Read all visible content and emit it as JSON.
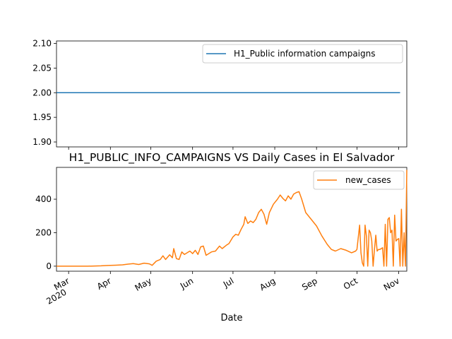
{
  "chart_data": [
    {
      "type": "line",
      "title": "",
      "xlabel": "",
      "ylabel": "",
      "ylim": [
        1.89,
        2.105
      ],
      "yticks": [
        "1.90",
        "1.95",
        "2.00",
        "2.05",
        "2.10"
      ],
      "legend": "top-right",
      "series": [
        {
          "name": "H1_Public information campaigns",
          "color": "#1f77b4",
          "x": [
            "2020-02-21",
            "2020-11-02"
          ],
          "y": [
            2.0,
            2.0
          ]
        }
      ]
    },
    {
      "type": "line",
      "title": "H1_PUBLIC_INFO_CAMPAIGNS VS Daily Cases in El Salvador",
      "xlabel": "Date",
      "ylabel": "",
      "ylim": [
        -30,
        590
      ],
      "yticks": [
        "0",
        "200",
        "400"
      ],
      "xticks": [
        {
          "date": "2020-03-01",
          "label": "Mar",
          "sub": "2020"
        },
        {
          "date": "2020-04-01",
          "label": "Apr",
          "sub": ""
        },
        {
          "date": "2020-05-01",
          "label": "May",
          "sub": ""
        },
        {
          "date": "2020-06-01",
          "label": "Jun",
          "sub": ""
        },
        {
          "date": "2020-07-01",
          "label": "Jul",
          "sub": ""
        },
        {
          "date": "2020-08-01",
          "label": "Aug",
          "sub": ""
        },
        {
          "date": "2020-09-01",
          "label": "Sep",
          "sub": ""
        },
        {
          "date": "2020-10-01",
          "label": "Oct",
          "sub": ""
        },
        {
          "date": "2020-11-01",
          "label": "Nov",
          "sub": ""
        }
      ],
      "legend": "top-right",
      "series": [
        {
          "name": "new_cases",
          "color": "#ff7f0e",
          "points": [
            [
              "2020-02-21",
              0
            ],
            [
              "2020-03-15",
              0
            ],
            [
              "2020-03-25",
              2
            ],
            [
              "2020-03-30",
              4
            ],
            [
              "2020-04-05",
              6
            ],
            [
              "2020-04-10",
              8
            ],
            [
              "2020-04-14",
              12
            ],
            [
              "2020-04-18",
              15
            ],
            [
              "2020-04-22",
              10
            ],
            [
              "2020-04-26",
              18
            ],
            [
              "2020-04-30",
              14
            ],
            [
              "2020-05-02",
              5
            ],
            [
              "2020-05-05",
              30
            ],
            [
              "2020-05-08",
              40
            ],
            [
              "2020-05-10",
              62
            ],
            [
              "2020-05-12",
              40
            ],
            [
              "2020-05-15",
              68
            ],
            [
              "2020-05-17",
              50
            ],
            [
              "2020-05-18",
              105
            ],
            [
              "2020-05-20",
              45
            ],
            [
              "2020-05-22",
              40
            ],
            [
              "2020-05-24",
              85
            ],
            [
              "2020-05-26",
              70
            ],
            [
              "2020-05-28",
              80
            ],
            [
              "2020-05-30",
              90
            ],
            [
              "2020-06-01",
              75
            ],
            [
              "2020-06-03",
              95
            ],
            [
              "2020-06-05",
              70
            ],
            [
              "2020-06-07",
              115
            ],
            [
              "2020-06-09",
              120
            ],
            [
              "2020-06-11",
              65
            ],
            [
              "2020-06-13",
              75
            ],
            [
              "2020-06-15",
              85
            ],
            [
              "2020-06-18",
              90
            ],
            [
              "2020-06-21",
              120
            ],
            [
              "2020-06-23",
              105
            ],
            [
              "2020-06-26",
              125
            ],
            [
              "2020-06-28",
              135
            ],
            [
              "2020-07-01",
              175
            ],
            [
              "2020-07-03",
              190
            ],
            [
              "2020-07-05",
              185
            ],
            [
              "2020-07-07",
              220
            ],
            [
              "2020-07-09",
              250
            ],
            [
              "2020-07-10",
              295
            ],
            [
              "2020-07-12",
              255
            ],
            [
              "2020-07-14",
              270
            ],
            [
              "2020-07-16",
              260
            ],
            [
              "2020-07-18",
              280
            ],
            [
              "2020-07-20",
              320
            ],
            [
              "2020-07-22",
              340
            ],
            [
              "2020-07-24",
              310
            ],
            [
              "2020-07-26",
              250
            ],
            [
              "2020-07-28",
              320
            ],
            [
              "2020-07-31",
              370
            ],
            [
              "2020-08-03",
              400
            ],
            [
              "2020-08-05",
              425
            ],
            [
              "2020-08-07",
              405
            ],
            [
              "2020-08-09",
              390
            ],
            [
              "2020-08-11",
              420
            ],
            [
              "2020-08-13",
              400
            ],
            [
              "2020-08-15",
              430
            ],
            [
              "2020-08-17",
              440
            ],
            [
              "2020-08-19",
              445
            ],
            [
              "2020-08-21",
              400
            ],
            [
              "2020-08-24",
              320
            ],
            [
              "2020-08-28",
              280
            ],
            [
              "2020-09-01",
              240
            ],
            [
              "2020-09-05",
              180
            ],
            [
              "2020-09-09",
              130
            ],
            [
              "2020-09-12",
              100
            ],
            [
              "2020-09-15",
              90
            ],
            [
              "2020-09-19",
              105
            ],
            [
              "2020-09-23",
              95
            ],
            [
              "2020-09-27",
              80
            ],
            [
              "2020-09-30",
              90
            ],
            [
              "2020-10-01",
              100
            ],
            [
              "2020-10-03",
              245
            ],
            [
              "2020-10-04",
              80
            ],
            [
              "2020-10-05",
              20
            ],
            [
              "2020-10-06",
              0
            ],
            [
              "2020-10-07",
              245
            ],
            [
              "2020-10-08",
              180
            ],
            [
              "2020-10-09",
              0
            ],
            [
              "2020-10-10",
              215
            ],
            [
              "2020-10-11",
              200
            ],
            [
              "2020-10-12",
              150
            ],
            [
              "2020-10-13",
              0
            ],
            [
              "2020-10-14",
              100
            ],
            [
              "2020-10-15",
              185
            ],
            [
              "2020-10-16",
              90
            ],
            [
              "2020-10-17",
              100
            ],
            [
              "2020-10-18",
              100
            ],
            [
              "2020-10-19",
              105
            ],
            [
              "2020-10-20",
              110
            ],
            [
              "2020-10-21",
              0
            ],
            [
              "2020-10-22",
              250
            ],
            [
              "2020-10-23",
              0
            ],
            [
              "2020-10-24",
              280
            ],
            [
              "2020-10-25",
              290
            ],
            [
              "2020-10-26",
              200
            ],
            [
              "2020-10-27",
              215
            ],
            [
              "2020-10-28",
              0
            ],
            [
              "2020-10-29",
              305
            ],
            [
              "2020-10-30",
              150
            ],
            [
              "2020-10-31",
              160
            ],
            [
              "2020-11-01",
              165
            ],
            [
              "2020-11-02",
              0
            ],
            [
              "2020-11-03",
              340
            ],
            [
              "2020-11-04",
              0
            ],
            [
              "2020-11-05",
              200
            ],
            [
              "2020-11-06",
              0
            ],
            [
              "2020-11-07",
              575
            ]
          ]
        }
      ]
    }
  ]
}
